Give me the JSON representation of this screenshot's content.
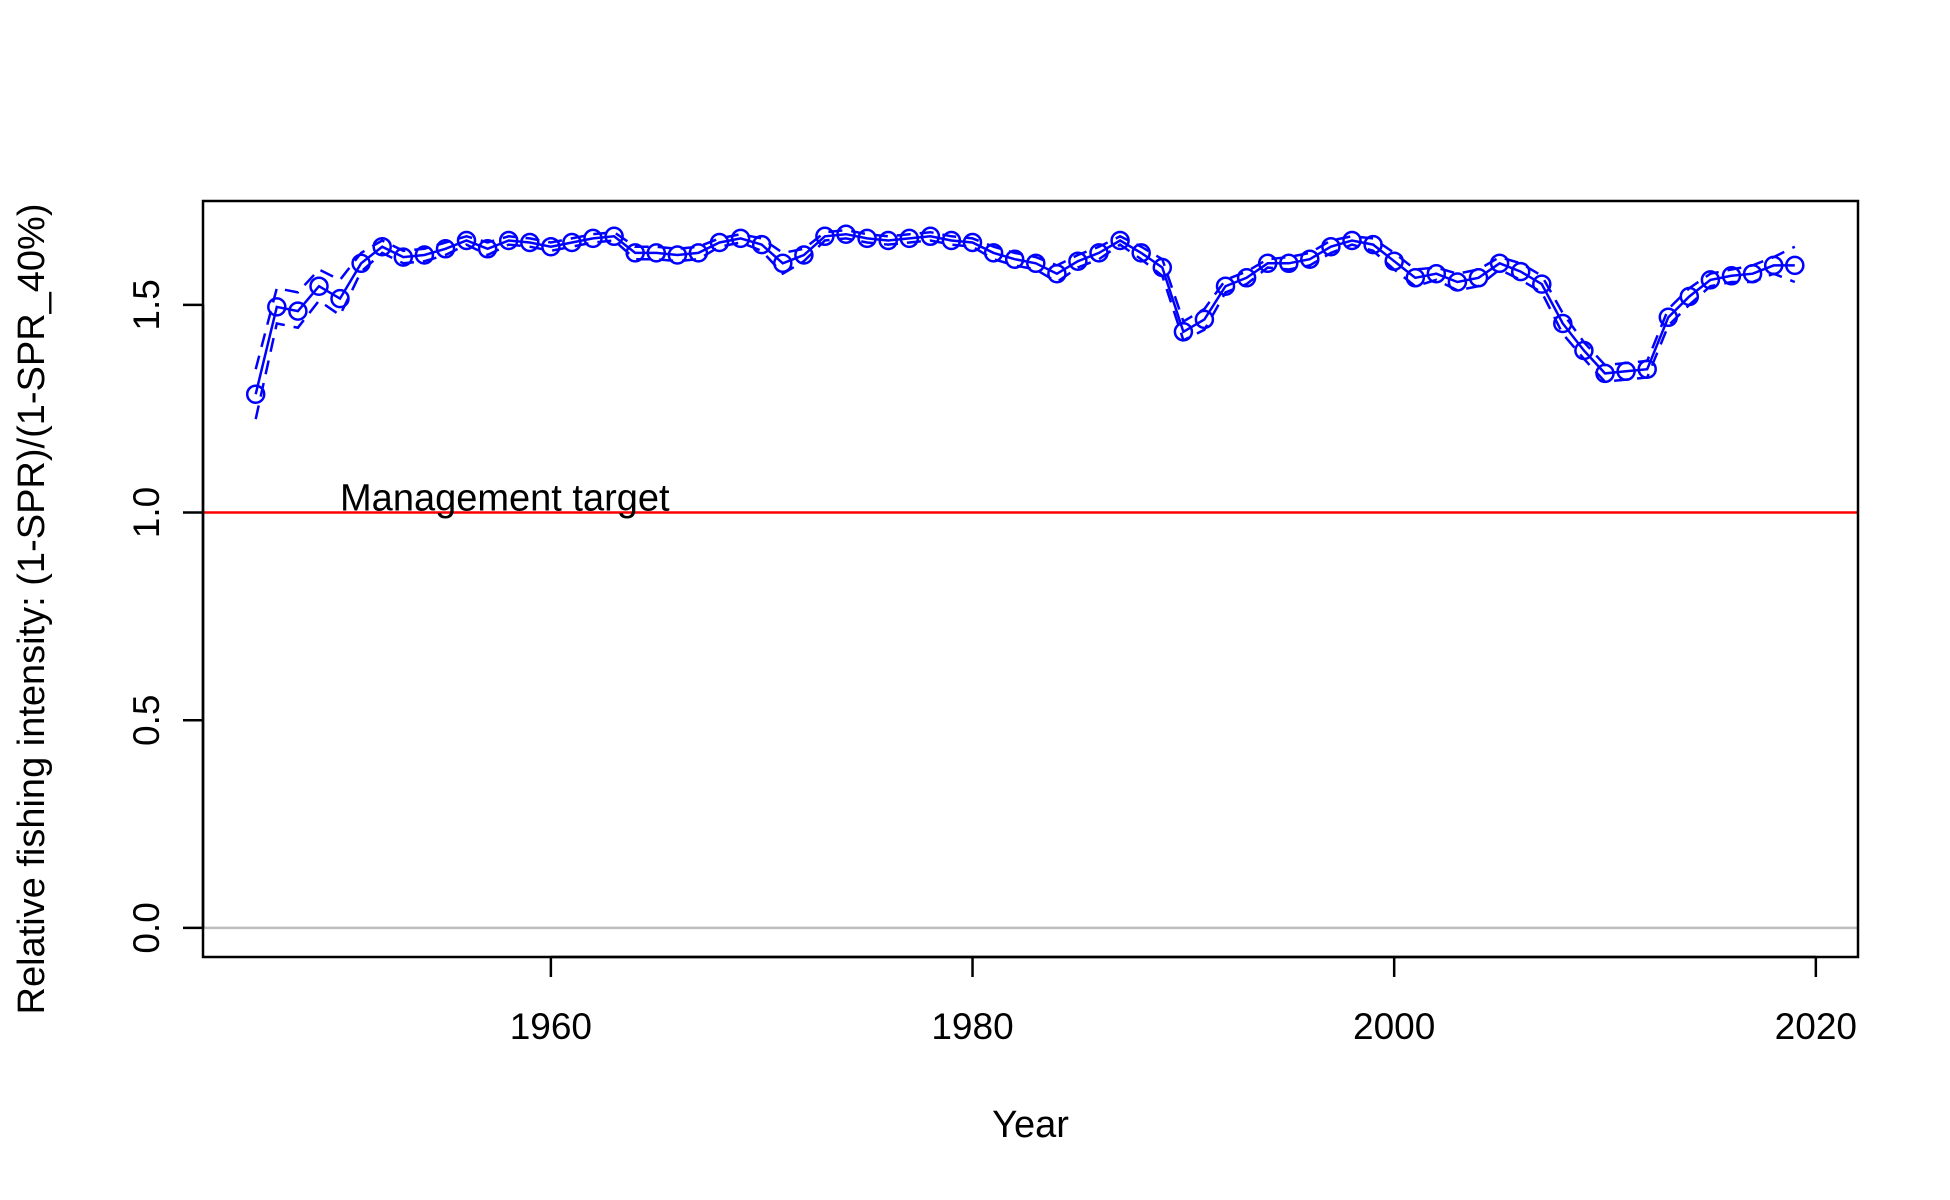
{
  "chart_data": {
    "type": "line",
    "title": "",
    "xlabel": "Year",
    "ylabel": "Relative fishing intensity: (1-SPR)/(1-SPR_40%)",
    "xlim": [
      1943.5,
      2022
    ],
    "ylim": [
      -0.07,
      1.75
    ],
    "xticks": [
      1960,
      1980,
      2000,
      2020
    ],
    "yticks": [
      0.0,
      0.5,
      1.0,
      1.5
    ],
    "ytick_labels": [
      "0.0",
      "0.5",
      "1.0",
      "1.5"
    ],
    "grid": false,
    "legend": "none",
    "series": [
      {
        "role": "median",
        "style": "solid line with open circles",
        "color": "#0000ff",
        "x": [
          1946,
          1947,
          1948,
          1949,
          1950,
          1951,
          1952,
          1953,
          1954,
          1955,
          1956,
          1957,
          1958,
          1959,
          1960,
          1961,
          1962,
          1963,
          1964,
          1965,
          1966,
          1967,
          1968,
          1969,
          1970,
          1971,
          1972,
          1973,
          1974,
          1975,
          1976,
          1977,
          1978,
          1979,
          1980,
          1981,
          1982,
          1983,
          1984,
          1985,
          1986,
          1987,
          1988,
          1989,
          1990,
          1991,
          1992,
          1993,
          1994,
          1995,
          1996,
          1997,
          1998,
          1999,
          2000,
          2001,
          2002,
          2003,
          2004,
          2005,
          2006,
          2007,
          2008,
          2009,
          2010,
          2011,
          2012,
          2013,
          2014,
          2015,
          2016,
          2017,
          2018,
          2019
        ],
        "values": [
          1.285,
          1.495,
          1.485,
          1.545,
          1.515,
          1.6,
          1.64,
          1.615,
          1.62,
          1.635,
          1.655,
          1.635,
          1.655,
          1.65,
          1.64,
          1.65,
          1.66,
          1.665,
          1.625,
          1.625,
          1.62,
          1.625,
          1.65,
          1.66,
          1.645,
          1.6,
          1.62,
          1.665,
          1.67,
          1.66,
          1.655,
          1.66,
          1.665,
          1.655,
          1.65,
          1.625,
          1.61,
          1.6,
          1.575,
          1.605,
          1.625,
          1.655,
          1.625,
          1.59,
          1.435,
          1.465,
          1.545,
          1.565,
          1.6,
          1.6,
          1.61,
          1.64,
          1.655,
          1.645,
          1.605,
          1.565,
          1.575,
          1.555,
          1.565,
          1.6,
          1.58,
          1.55,
          1.455,
          1.39,
          1.335,
          1.34,
          1.345,
          1.47,
          1.52,
          1.56,
          1.57,
          1.575,
          1.595,
          1.595
        ]
      },
      {
        "role": "upper bound",
        "style": "dashed line",
        "color": "#0000ff",
        "x": [
          1946,
          1947,
          1948,
          1949,
          1950,
          1951,
          1952,
          1953,
          1954,
          1955,
          1956,
          1957,
          1958,
          1959,
          1960,
          1961,
          1962,
          1963,
          1964,
          1965,
          1966,
          1967,
          1968,
          1969,
          1970,
          1971,
          1972,
          1973,
          1974,
          1975,
          1976,
          1977,
          1978,
          1979,
          1980,
          1981,
          1982,
          1983,
          1984,
          1985,
          1986,
          1987,
          1988,
          1989,
          1990,
          1991,
          1992,
          1993,
          1994,
          1995,
          1996,
          1997,
          1998,
          1999,
          2000,
          2001,
          2002,
          2003,
          2004,
          2005,
          2006,
          2007,
          2008,
          2009,
          2010,
          2011,
          2012,
          2013,
          2014,
          2015,
          2016,
          2017,
          2018,
          2019
        ],
        "values": [
          1.345,
          1.54,
          1.53,
          1.585,
          1.56,
          1.625,
          1.655,
          1.63,
          1.635,
          1.65,
          1.665,
          1.65,
          1.665,
          1.66,
          1.65,
          1.66,
          1.67,
          1.675,
          1.64,
          1.64,
          1.635,
          1.64,
          1.66,
          1.67,
          1.66,
          1.625,
          1.635,
          1.675,
          1.68,
          1.67,
          1.665,
          1.67,
          1.675,
          1.665,
          1.66,
          1.64,
          1.625,
          1.615,
          1.595,
          1.62,
          1.64,
          1.665,
          1.64,
          1.61,
          1.46,
          1.49,
          1.56,
          1.58,
          1.61,
          1.615,
          1.625,
          1.655,
          1.665,
          1.66,
          1.625,
          1.585,
          1.59,
          1.575,
          1.585,
          1.615,
          1.6,
          1.57,
          1.48,
          1.41,
          1.355,
          1.36,
          1.365,
          1.49,
          1.54,
          1.575,
          1.585,
          1.595,
          1.615,
          1.64
        ]
      },
      {
        "role": "lower bound",
        "style": "dashed line",
        "color": "#0000ff",
        "x": [
          1946,
          1947,
          1948,
          1949,
          1950,
          1951,
          1952,
          1953,
          1954,
          1955,
          1956,
          1957,
          1958,
          1959,
          1960,
          1961,
          1962,
          1963,
          1964,
          1965,
          1966,
          1967,
          1968,
          1969,
          1970,
          1971,
          1972,
          1973,
          1974,
          1975,
          1976,
          1977,
          1978,
          1979,
          1980,
          1981,
          1982,
          1983,
          1984,
          1985,
          1986,
          1987,
          1988,
          1989,
          1990,
          1991,
          1992,
          1993,
          1994,
          1995,
          1996,
          1997,
          1998,
          1999,
          2000,
          2001,
          2002,
          2003,
          2004,
          2005,
          2006,
          2007,
          2008,
          2009,
          2010,
          2011,
          2012,
          2013,
          2014,
          2015,
          2016,
          2017,
          2018,
          2019
        ],
        "values": [
          1.225,
          1.455,
          1.445,
          1.51,
          1.475,
          1.58,
          1.625,
          1.6,
          1.605,
          1.62,
          1.645,
          1.62,
          1.645,
          1.64,
          1.63,
          1.64,
          1.65,
          1.655,
          1.61,
          1.61,
          1.605,
          1.61,
          1.64,
          1.65,
          1.63,
          1.575,
          1.605,
          1.655,
          1.66,
          1.65,
          1.645,
          1.65,
          1.655,
          1.645,
          1.64,
          1.61,
          1.595,
          1.585,
          1.555,
          1.59,
          1.61,
          1.645,
          1.61,
          1.57,
          1.415,
          1.44,
          1.53,
          1.55,
          1.59,
          1.585,
          1.595,
          1.625,
          1.645,
          1.63,
          1.585,
          1.545,
          1.56,
          1.535,
          1.545,
          1.585,
          1.56,
          1.53,
          1.43,
          1.37,
          1.315,
          1.32,
          1.325,
          1.45,
          1.5,
          1.545,
          1.555,
          1.555,
          1.575,
          1.555
        ]
      }
    ],
    "hlines": [
      {
        "y": 1.0,
        "color": "#ff0000",
        "label": "Management target"
      },
      {
        "y": 0.0,
        "color": "#bebebe",
        "label": ""
      }
    ],
    "annotations": [
      {
        "text": "Management target",
        "x": 1950,
        "y": 1.0
      }
    ]
  }
}
